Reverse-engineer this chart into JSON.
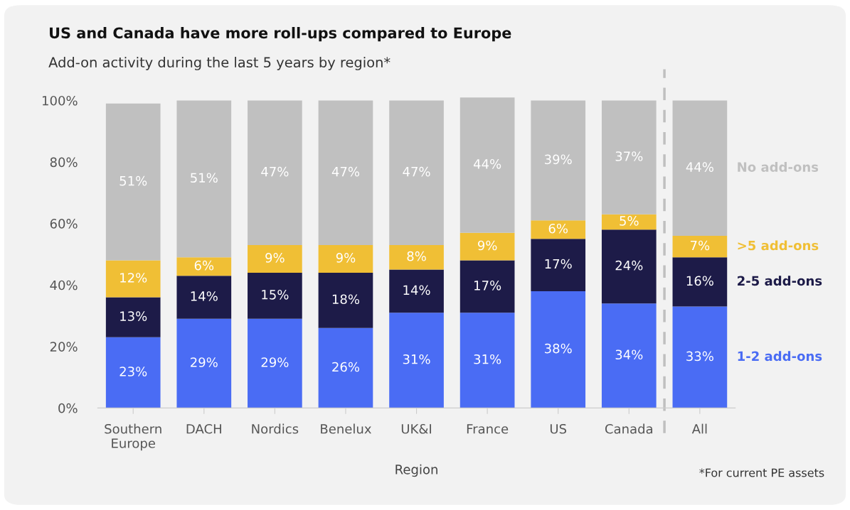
{
  "chart_data": {
    "type": "bar",
    "stacked": true,
    "title": "US and Canada have more roll-ups compared to Europe",
    "subtitle": "Add-on activity during the last 5 years by region*",
    "xlabel": "Region",
    "categories": [
      "Southern Europe",
      "DACH",
      "Nordics",
      "Benelux",
      "UK&I",
      "France",
      "US",
      "Canada",
      "All"
    ],
    "series": [
      {
        "name": "1-2 add-ons",
        "color": "#4a6cf4",
        "values": [
          23,
          29,
          29,
          26,
          31,
          31,
          38,
          34,
          33
        ],
        "value_labels": [
          "23%",
          "29%",
          "29%",
          "26%",
          "31%",
          "31%",
          "38%",
          "34%",
          "33%"
        ]
      },
      {
        "name": "2-5 add-ons",
        "color": "#1d1b48",
        "values": [
          13,
          14,
          15,
          18,
          14,
          17,
          17,
          24,
          16
        ],
        "value_labels": [
          "13%",
          "14%",
          "15%",
          "18%",
          "14%",
          "17%",
          "17%",
          "24%",
          "16%"
        ]
      },
      {
        "name": ">5 add-ons",
        "color": "#f0bf35",
        "values": [
          12,
          6,
          9,
          9,
          8,
          9,
          6,
          5,
          7
        ],
        "value_labels": [
          "12%",
          "6%",
          "9%",
          "9%",
          "8%",
          "9%",
          "6%",
          "5%",
          "7%"
        ]
      },
      {
        "name": "No add-ons",
        "color": "#c0c0c0",
        "values": [
          51,
          51,
          47,
          47,
          47,
          44,
          39,
          37,
          44
        ],
        "value_labels": [
          "51%",
          "51%",
          "47%",
          "47%",
          "47%",
          "44%",
          "39%",
          "37%",
          "44%"
        ]
      }
    ],
    "ylim": [
      0,
      102
    ],
    "yticks": [
      {
        "value": 0,
        "label": "0%"
      },
      {
        "value": 20,
        "label": "20%"
      },
      {
        "value": 40,
        "label": "40%"
      },
      {
        "value": 60,
        "label": "60%"
      },
      {
        "value": 80,
        "label": "80%"
      },
      {
        "value": 100,
        "label": "100%"
      }
    ],
    "annotations": [
      "*For current PE assets"
    ],
    "legend": "right",
    "grid": false
  }
}
